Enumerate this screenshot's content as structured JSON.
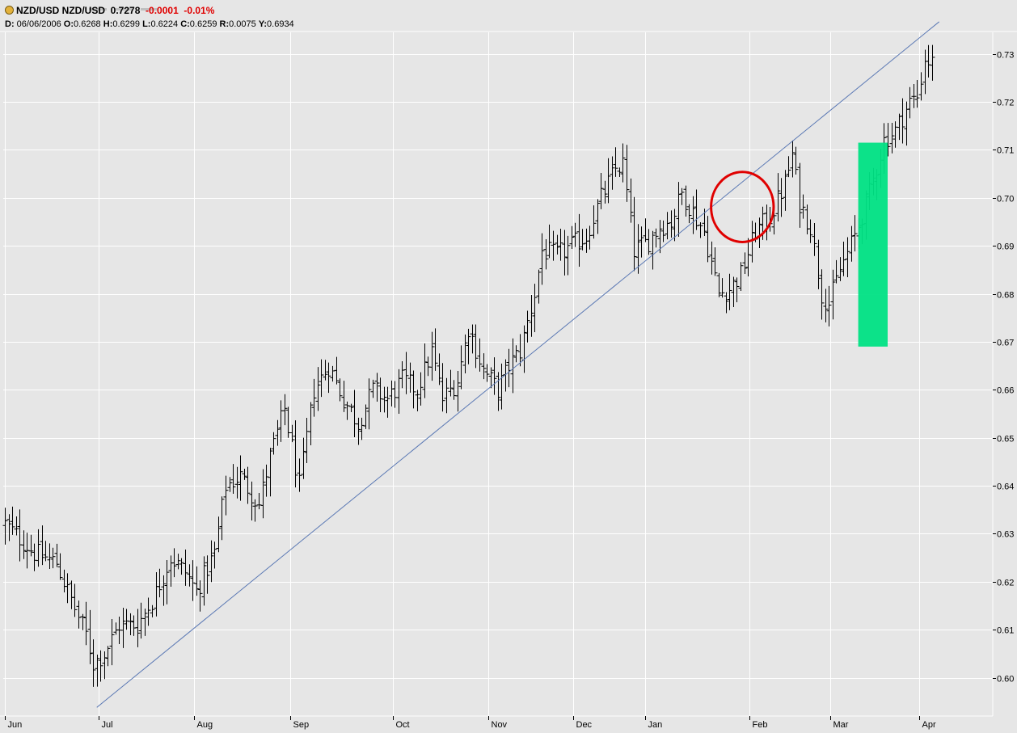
{
  "header": {
    "symbol": "NZD/USD NZD/USD",
    "last": "0.7278",
    "change": "-0.0001",
    "change_pct": "-0.01%",
    "date_label": "D:",
    "date": "06/06/2006",
    "open_label": "O:",
    "open": "0.6268",
    "high_label": "H:",
    "high": "0.6299",
    "low_label": "L:",
    "low": "0.6224",
    "close_label": "C:",
    "close": "0.6259",
    "range_label": "R:",
    "range": "0.0075",
    "y_label": "Y:",
    "y": "0.6934"
  },
  "colors": {
    "background": "#e6e6e6",
    "grid": "#ffffff",
    "bars": "#000000",
    "trendline": "#5a78b4",
    "circle": "#e00000",
    "highlight": "#00e184",
    "negative": "#e00000"
  },
  "chart_data": {
    "type": "ohlc",
    "series_name": "NZD/USD",
    "interval": "daily",
    "x_tick_labels": [
      "Jun",
      "Jul",
      "Aug",
      "Sep",
      "Oct",
      "Nov",
      "Dec",
      "Jan",
      "Feb",
      "Mar",
      "Apr"
    ],
    "y_tick_labels": [
      "0.73",
      "0.72",
      "0.71",
      "0.70",
      "0.69",
      "0.68",
      "0.67",
      "0.66",
      "0.65",
      "0.64",
      "0.63",
      "0.62",
      "0.61",
      "0.60"
    ],
    "y_ticks": [
      0.73,
      0.72,
      0.71,
      0.7,
      0.69,
      0.68,
      0.67,
      0.66,
      0.65,
      0.64,
      0.63,
      0.62,
      0.61,
      0.6
    ],
    "ylim": [
      0.592,
      0.7345
    ],
    "grid": true,
    "axis_position": "right",
    "close_anchors": [
      [
        0,
        0.632
      ],
      [
        8,
        0.626
      ],
      [
        14,
        0.624
      ],
      [
        17,
        0.618
      ],
      [
        22,
        0.609
      ],
      [
        24,
        0.603
      ],
      [
        27,
        0.605
      ],
      [
        31,
        0.611
      ],
      [
        36,
        0.611
      ],
      [
        40,
        0.616
      ],
      [
        45,
        0.625
      ],
      [
        49,
        0.622
      ],
      [
        52,
        0.618
      ],
      [
        57,
        0.626
      ],
      [
        60,
        0.64
      ],
      [
        64,
        0.642
      ],
      [
        69,
        0.636
      ],
      [
        72,
        0.646
      ],
      [
        76,
        0.656
      ],
      [
        80,
        0.64
      ],
      [
        84,
        0.66
      ],
      [
        88,
        0.665
      ],
      [
        92,
        0.658
      ],
      [
        96,
        0.653
      ],
      [
        100,
        0.66
      ],
      [
        104,
        0.658
      ],
      [
        108,
        0.662
      ],
      [
        112,
        0.66
      ],
      [
        116,
        0.668
      ],
      [
        119,
        0.658
      ],
      [
        123,
        0.662
      ],
      [
        126,
        0.673
      ],
      [
        130,
        0.664
      ],
      [
        134,
        0.66
      ],
      [
        137,
        0.665
      ],
      [
        140,
        0.668
      ],
      [
        144,
        0.68
      ],
      [
        146,
        0.689
      ],
      [
        150,
        0.688
      ],
      [
        154,
        0.69
      ],
      [
        158,
        0.692
      ],
      [
        162,
        0.7
      ],
      [
        166,
        0.706
      ],
      [
        168,
        0.707
      ],
      [
        171,
        0.689
      ],
      [
        175,
        0.691
      ],
      [
        178,
        0.694
      ],
      [
        181,
        0.695
      ],
      [
        184,
        0.701
      ],
      [
        187,
        0.697
      ],
      [
        190,
        0.693
      ],
      [
        194,
        0.68
      ],
      [
        197,
        0.681
      ],
      [
        200,
        0.684
      ],
      [
        204,
        0.693
      ],
      [
        208,
        0.696
      ],
      [
        212,
        0.703
      ],
      [
        214,
        0.709
      ],
      [
        216,
        0.699
      ],
      [
        219,
        0.694
      ],
      [
        222,
        0.68
      ],
      [
        224,
        0.678
      ],
      [
        227,
        0.685
      ],
      [
        231,
        0.692
      ],
      [
        235,
        0.701
      ],
      [
        239,
        0.712
      ],
      [
        242,
        0.714
      ],
      [
        246,
        0.72
      ],
      [
        248,
        0.721
      ],
      [
        250,
        0.729
      ],
      [
        252,
        0.728
      ]
    ],
    "trendline": {
      "x": [
        25,
        254
      ],
      "y": [
        0.5938,
        0.7367
      ]
    },
    "annotations": [
      {
        "type": "circle",
        "center_day": 200.5,
        "center_price": 0.6981,
        "radius_days": 8.5,
        "radius_price": 0.0073
      },
      {
        "type": "highlight-rect",
        "day_from": 232,
        "day_to": 240,
        "price_from": 0.669,
        "price_to": 0.7115
      }
    ]
  }
}
